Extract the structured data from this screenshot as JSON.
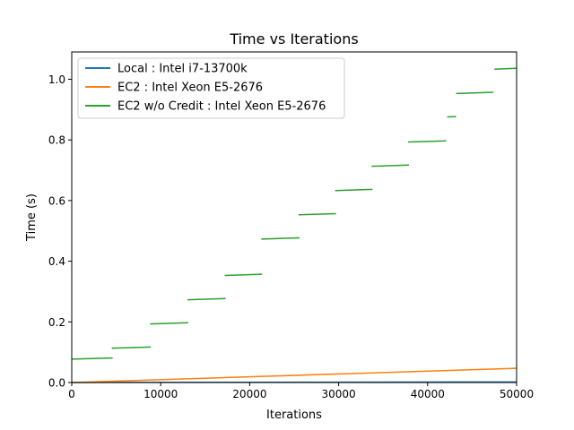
{
  "chart_data": {
    "type": "line",
    "title": "Time vs Iterations",
    "xlabel": "Iterations",
    "ylabel": "Time (s)",
    "xlim": [
      0,
      50000
    ],
    "ylim": [
      0,
      1.09
    ],
    "xticks": [
      0,
      10000,
      20000,
      30000,
      40000,
      50000
    ],
    "xtick_labels": [
      "0",
      "10000",
      "20000",
      "30000",
      "40000",
      "50000"
    ],
    "yticks": [
      0.0,
      0.2,
      0.4,
      0.6,
      0.8,
      1.0
    ],
    "ytick_labels": [
      "0.0",
      "0.2",
      "0.4",
      "0.6",
      "0.8",
      "1.0"
    ],
    "grid": false,
    "legend_position": "top-left",
    "series": [
      {
        "name": "Local : Intel i7-13700k",
        "color": "#1f77b4",
        "segments": [
          [
            [
              0,
              0.0
            ],
            [
              50000,
              0.002
            ]
          ]
        ]
      },
      {
        "name": "EC2 : Intel Xeon E5-2676",
        "color": "#ff7f0e",
        "segments": [
          [
            [
              0,
              0.0
            ],
            [
              50000,
              0.047
            ]
          ]
        ]
      },
      {
        "name": "EC2 w/o Credit : Intel Xeon E5-2676",
        "color": "#2ca02c",
        "segments": [
          [
            [
              0,
              0.077
            ],
            [
              4600,
              0.081
            ]
          ],
          [
            [
              4500,
              0.113
            ],
            [
              8900,
              0.117
            ]
          ],
          [
            [
              8800,
              0.193
            ],
            [
              13100,
              0.197
            ]
          ],
          [
            [
              13000,
              0.273
            ],
            [
              17300,
              0.277
            ]
          ],
          [
            [
              17200,
              0.353
            ],
            [
              21400,
              0.357
            ]
          ],
          [
            [
              21300,
              0.473
            ],
            [
              25600,
              0.477
            ]
          ],
          [
            [
              25500,
              0.553
            ],
            [
              29700,
              0.557
            ]
          ],
          [
            [
              29600,
              0.633
            ],
            [
              33800,
              0.637
            ]
          ],
          [
            [
              33700,
              0.713
            ],
            [
              37900,
              0.717
            ]
          ],
          [
            [
              37800,
              0.793
            ],
            [
              42100,
              0.797
            ]
          ],
          [
            [
              42200,
              0.876
            ],
            [
              43200,
              0.877
            ]
          ],
          [
            [
              43200,
              0.953
            ],
            [
              47400,
              0.957
            ]
          ],
          [
            [
              47500,
              1.033
            ],
            [
              50000,
              1.036
            ]
          ]
        ]
      }
    ]
  }
}
